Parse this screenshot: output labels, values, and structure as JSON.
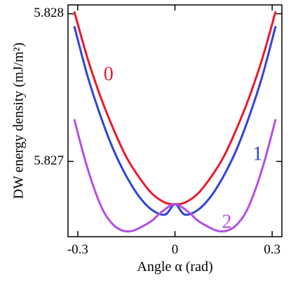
{
  "chart_data": {
    "type": "line",
    "xlabel": "Angle  α (rad)",
    "ylabel": "DW energy density (mJ/m²)",
    "xlim": [
      -0.33,
      0.33
    ],
    "ylim": [
      5.82649,
      5.82806
    ],
    "x_ticks": [
      {
        "value": -0.3,
        "label": "-0.3"
      },
      {
        "value": 0,
        "label": "0"
      },
      {
        "value": 0.3,
        "label": "0.3"
      }
    ],
    "y_ticks": [
      {
        "value": 5.827,
        "label": "5.827"
      },
      {
        "value": 5.828,
        "label": "5.828"
      }
    ],
    "grid": false,
    "series": [
      {
        "name": "0",
        "color": "#e8192c",
        "label_at": {
          "x": -0.205,
          "y": 5.82758
        },
        "x": [
          -0.31,
          -0.27,
          -0.23,
          -0.19,
          -0.15,
          -0.11,
          -0.07,
          -0.03,
          0,
          0.03,
          0.07,
          0.11,
          0.15,
          0.19,
          0.23,
          0.27,
          0.31
        ],
        "y": [
          5.82801,
          5.8277,
          5.82744,
          5.82722,
          5.82703,
          5.82689,
          5.82678,
          5.82672,
          5.82671,
          5.82672,
          5.82678,
          5.82689,
          5.82703,
          5.82722,
          5.82744,
          5.8277,
          5.82801
        ]
      },
      {
        "name": "1",
        "color": "#2e45d8",
        "label_at": {
          "x": 0.255,
          "y": 5.82704
        },
        "x": [
          -0.31,
          -0.27,
          -0.23,
          -0.19,
          -0.15,
          -0.11,
          -0.07,
          -0.03,
          0,
          0.03,
          0.07,
          0.11,
          0.15,
          0.19,
          0.23,
          0.27,
          0.31
        ],
        "y": [
          5.82791,
          5.82758,
          5.82731,
          5.82708,
          5.8269,
          5.82676,
          5.82667,
          5.82664,
          5.82671,
          5.82664,
          5.82667,
          5.82676,
          5.8269,
          5.82708,
          5.82731,
          5.82758,
          5.82791
        ]
      },
      {
        "name": "2",
        "color": "#b44ee6",
        "label_at": {
          "x": 0.16,
          "y": 5.82658
        },
        "x": [
          -0.31,
          -0.28,
          -0.25,
          -0.22,
          -0.19,
          -0.16,
          -0.13,
          -0.1,
          -0.07,
          -0.04,
          0,
          0.04,
          0.07,
          0.1,
          0.13,
          0.16,
          0.19,
          0.22,
          0.25,
          0.28,
          0.31
        ],
        "y": [
          5.82728,
          5.82703,
          5.82682,
          5.82666,
          5.82657,
          5.82653,
          5.82653,
          5.82656,
          5.8266,
          5.82666,
          5.82671,
          5.82666,
          5.8266,
          5.82656,
          5.82653,
          5.82653,
          5.82657,
          5.82666,
          5.82682,
          5.82703,
          5.82728
        ]
      }
    ]
  }
}
